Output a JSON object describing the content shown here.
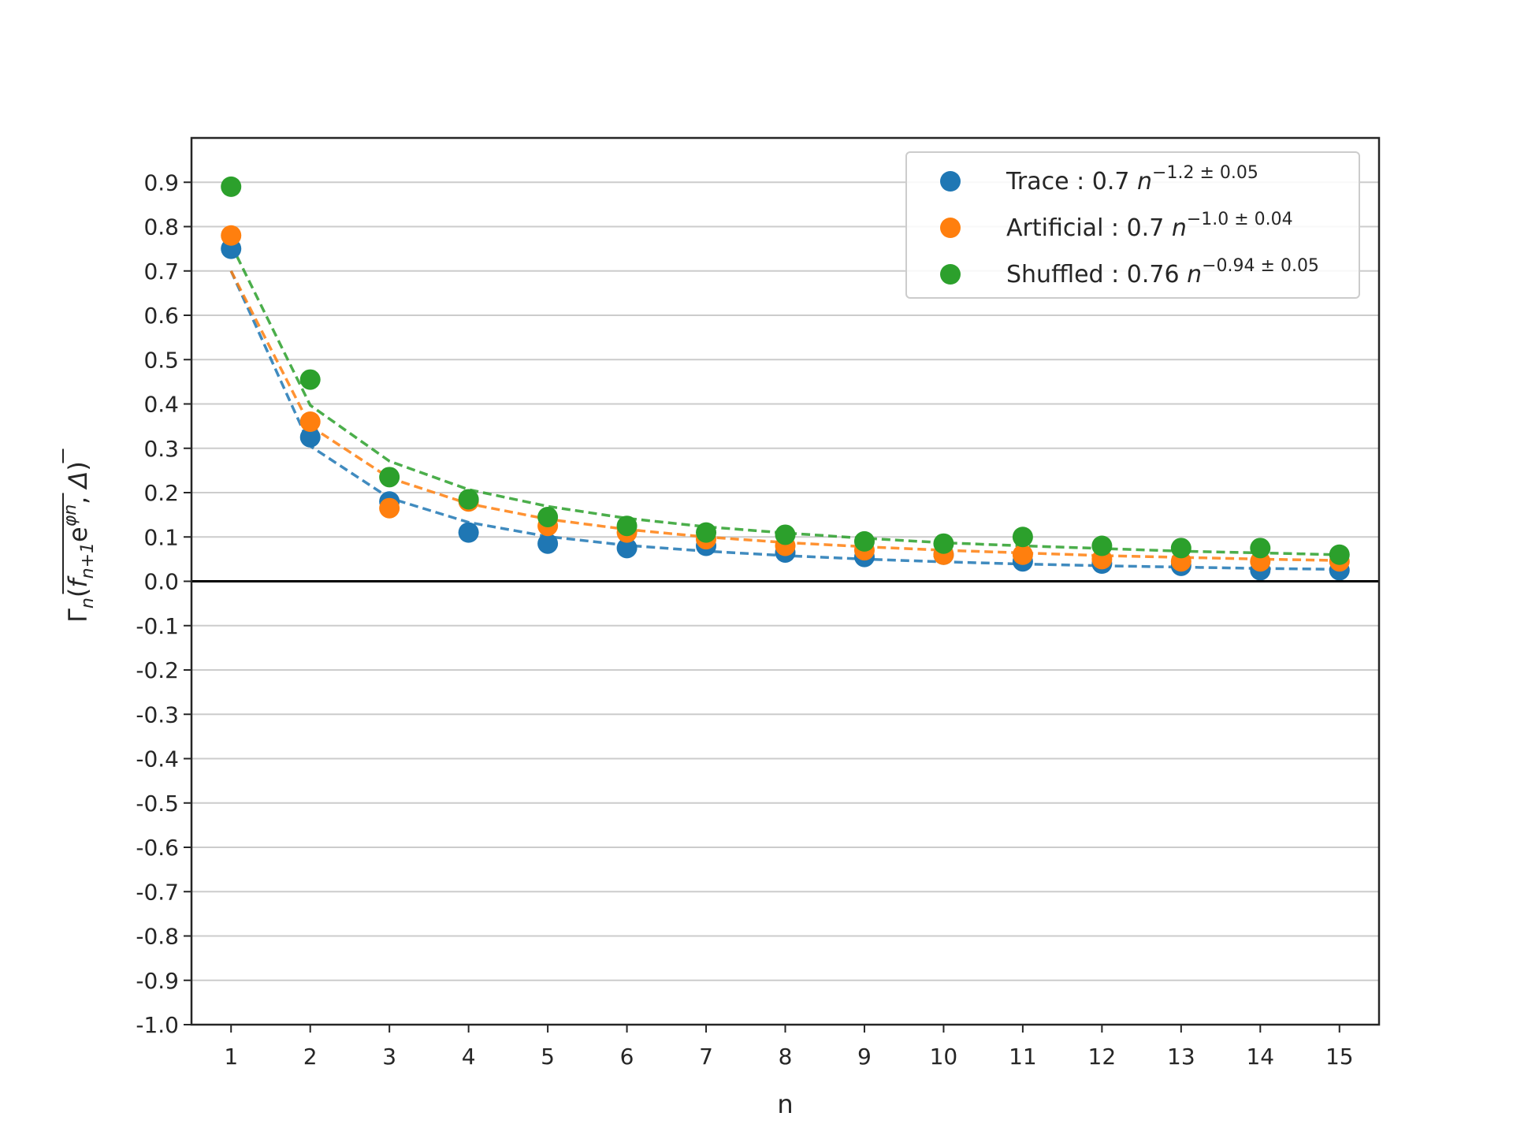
{
  "chart_data": {
    "type": "scatter",
    "xlabel": "n",
    "ylabel": "Γn(fn+1eφn, Δ)",
    "x": [
      1,
      2,
      3,
      4,
      5,
      6,
      7,
      8,
      9,
      10,
      11,
      12,
      13,
      14,
      15
    ],
    "xlim": [
      0.5,
      15.5
    ],
    "ylim": [
      -1.0,
      1.0
    ],
    "y_ticks": [
      -1.0,
      -0.9,
      -0.8,
      -0.7,
      -0.6,
      -0.5,
      -0.4,
      -0.3,
      -0.2,
      -0.1,
      0.0,
      0.1,
      0.2,
      0.3,
      0.4,
      0.5,
      0.6,
      0.7,
      0.8,
      0.9
    ],
    "y_tick_labels": [
      "-1.0",
      "-0.9",
      "-0.8",
      "-0.7",
      "-0.6",
      "-0.5",
      "-0.4",
      "-0.3",
      "-0.2",
      "-0.1",
      "0.0",
      "0.1",
      "0.2",
      "0.3",
      "0.4",
      "0.5",
      "0.6",
      "0.7",
      "0.8",
      "0.9"
    ],
    "x_tick_labels": [
      "1",
      "2",
      "3",
      "4",
      "5",
      "6",
      "7",
      "8",
      "9",
      "10",
      "11",
      "12",
      "13",
      "14",
      "15"
    ],
    "grid": "horizontal",
    "zero_line": true,
    "legend_position": "top-right",
    "series": [
      {
        "name": "Trace",
        "color": "#1f77b4",
        "points": [
          0.75,
          0.325,
          0.18,
          0.11,
          0.085,
          0.075,
          0.08,
          0.065,
          0.055,
          0.06,
          0.045,
          0.04,
          0.035,
          0.025,
          0.025
        ],
        "fit": [
          0.7,
          0.305,
          0.188,
          0.133,
          0.101,
          0.081,
          0.068,
          0.058,
          0.05,
          0.044,
          0.039,
          0.035,
          0.032,
          0.029,
          0.027
        ],
        "legend_label": "Trace",
        "legend_formula": "0.7",
        "legend_exponent": "−1.2 ± 0.05"
      },
      {
        "name": "Artificial",
        "color": "#ff7f0e",
        "points": [
          0.78,
          0.36,
          0.165,
          0.18,
          0.125,
          0.11,
          0.095,
          0.08,
          0.07,
          0.06,
          0.06,
          0.05,
          0.045,
          0.045,
          0.045
        ],
        "fit": [
          0.7,
          0.35,
          0.233,
          0.175,
          0.14,
          0.117,
          0.1,
          0.0875,
          0.078,
          0.07,
          0.064,
          0.058,
          0.054,
          0.05,
          0.047
        ],
        "legend_label": "Artificial",
        "legend_formula": "0.7",
        "legend_exponent": "−1.0 ± 0.04"
      },
      {
        "name": "Shuffled",
        "color": "#2ca02c",
        "points": [
          0.89,
          0.455,
          0.235,
          0.185,
          0.145,
          0.125,
          0.11,
          0.105,
          0.09,
          0.085,
          0.1,
          0.08,
          0.075,
          0.075,
          0.06
        ],
        "fit": [
          0.76,
          0.397,
          0.271,
          0.207,
          0.169,
          0.142,
          0.123,
          0.109,
          0.097,
          0.087,
          0.08,
          0.074,
          0.068,
          0.064,
          0.06
        ],
        "legend_label": "Shuffled",
        "legend_formula": "0.76",
        "legend_exponent": "−0.94 ± 0.05"
      }
    ]
  }
}
